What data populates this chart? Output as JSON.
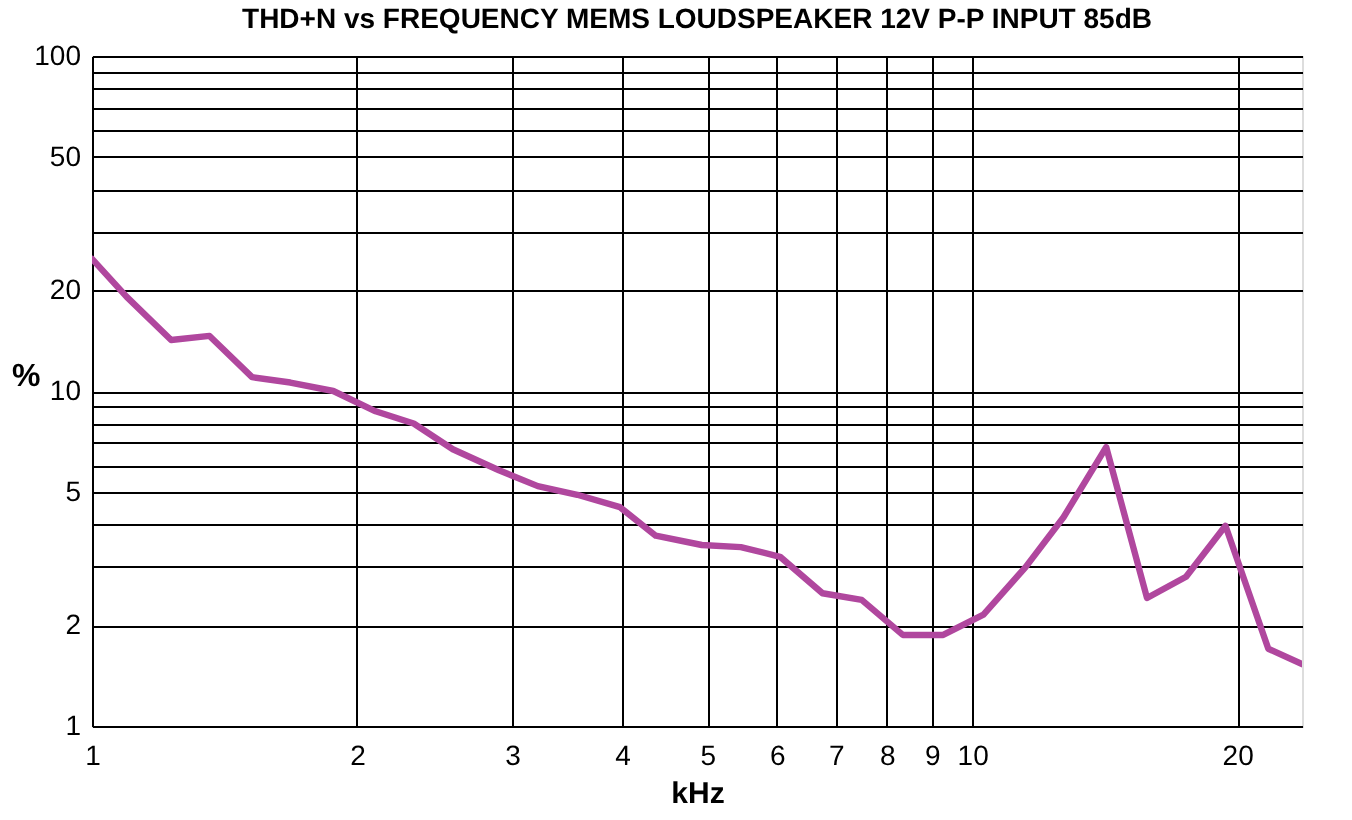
{
  "chart_data": {
    "type": "line",
    "title": "THD+N vs FREQUENCY MEMS LOUDSPEAKER 12V P-P INPUT 85dB",
    "xlabel": "kHz",
    "ylabel": "%",
    "log": "xy",
    "grid": true,
    "marker": "none",
    "line_style": "solid",
    "xlim": [
      1,
      23.7
    ],
    "ylim": [
      1,
      100
    ],
    "xticks": [
      1,
      2,
      3,
      4,
      5,
      6,
      7,
      8,
      9,
      10,
      20
    ],
    "yticks": [
      1,
      2,
      {
        "value": 3,
        "label": null
      },
      {
        "value": 4,
        "label": null
      },
      5,
      {
        "value": 6,
        "label": null
      },
      {
        "value": 7,
        "label": null
      },
      {
        "value": 8,
        "label": null
      },
      {
        "value": 9,
        "label": null
      },
      10,
      20,
      {
        "value": 30,
        "label": null
      },
      {
        "value": 40,
        "label": null
      },
      50,
      {
        "value": 60,
        "label": null
      },
      {
        "value": 70,
        "label": null
      },
      {
        "value": 80,
        "label": null
      },
      {
        "value": 90,
        "label": null
      },
      100
    ],
    "x": [
      1,
      1.095,
      1.23,
      1.36,
      1.52,
      1.68,
      1.88,
      2.1,
      2.32,
      2.57,
      2.9,
      3.21,
      3.56,
      3.98,
      4.37,
      4.93,
      5.46,
      6.05,
      6.76,
      7.49,
      8.34,
      9.27,
      10.3,
      11.5,
      12.7,
      14.2,
      15.8,
      17.5,
      19.4,
      21.7,
      23.7
    ],
    "series": [
      {
        "color": "#b0479e",
        "values": [
          24.8,
          19.1,
          14.2,
          14.6,
          11.0,
          10.6,
          10.0,
          8.7,
          8.0,
          6.7,
          5.8,
          5.2,
          4.9,
          4.5,
          3.7,
          3.47,
          3.42,
          3.2,
          2.49,
          2.38,
          1.87,
          1.87,
          2.15,
          2.98,
          4.2,
          6.8,
          2.41,
          2.79,
          3.96,
          1.7,
          1.53
        ]
      }
    ]
  }
}
